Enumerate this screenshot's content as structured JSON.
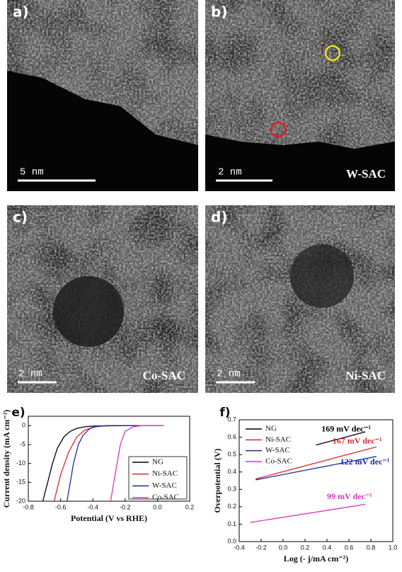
{
  "panels": [
    {
      "label": "a)",
      "scale_bar": "5 nm"
    },
    {
      "label": "b)",
      "scale_bar": "2 nm",
      "sample": "W-SAC"
    },
    {
      "label": "c)",
      "scale_bar": "2 nm",
      "sample": "Co-SAC"
    },
    {
      "label": "d)",
      "scale_bar": "2 nm",
      "sample": "Ni-SAC"
    }
  ],
  "chart_data": [
    {
      "type": "line",
      "label": "e)",
      "x_label": "Potential (V vs RHE)",
      "y_label": "Current density (mA cm⁻²)",
      "xlim": [
        -0.8,
        0.2
      ],
      "xticks": [
        -0.8,
        -0.6,
        -0.4,
        -0.2,
        {
          "value": 0,
          "label": "0.0"
        },
        0.2
      ],
      "ylim": [
        -20,
        2.5
      ],
      "yticks": [
        -20,
        -15,
        -10,
        -5,
        0
      ],
      "legend": "lower-right",
      "series": [
        {
          "name": "NG",
          "color": "#000000",
          "x": [
            -0.71,
            -0.68,
            -0.65,
            -0.62,
            -0.58,
            -0.54,
            -0.5,
            -0.45,
            -0.4,
            -0.3,
            -0.2,
            0.0
          ],
          "values": [
            -20,
            -15,
            -10,
            -6,
            -3,
            -1.5,
            -0.7,
            -0.3,
            -0.1,
            0,
            0,
            0
          ]
        },
        {
          "name": "Ni-SAC",
          "color": "#e02828",
          "x": [
            -0.64,
            -0.6,
            -0.55,
            -0.5,
            -0.45,
            -0.4,
            -0.35,
            -0.2,
            0.0
          ],
          "values": [
            -20,
            -13,
            -7,
            -3,
            -1.2,
            -0.4,
            -0.1,
            0,
            0
          ]
        },
        {
          "name": "W-SAC",
          "color": "#1c2a9c",
          "x": [
            -0.56,
            -0.54,
            -0.52,
            -0.49,
            -0.46,
            -0.42,
            -0.38,
            -0.3,
            0.03
          ],
          "values": [
            -20,
            -15,
            -10,
            -5,
            -2.5,
            -0.8,
            -0.2,
            0,
            0
          ]
        },
        {
          "name": "Co-SAC",
          "color": "#d038c0",
          "x": [
            -0.29,
            -0.27,
            -0.25,
            -0.23,
            -0.2,
            -0.15,
            -0.1,
            0.04
          ],
          "values": [
            -20,
            -15,
            -10,
            -5,
            -1.5,
            -0.3,
            0,
            0
          ]
        }
      ]
    },
    {
      "type": "line",
      "label": "f)",
      "x_label": "Log (- j/mA cm⁻²)",
      "y_label": "Overpotential (V)",
      "xlim": [
        -0.4,
        1.0
      ],
      "xticks": [
        -0.4,
        -0.2,
        {
          "value": 0,
          "label": "0.0"
        },
        0.2,
        0.4,
        0.6,
        0.8,
        {
          "value": 1,
          "label": "1.0"
        }
      ],
      "ylim": [
        0,
        0.7
      ],
      "yticks": [
        {
          "value": 0,
          "label": "0.0"
        },
        0.1,
        0.2,
        0.3,
        0.4,
        0.5,
        0.6,
        0.7
      ],
      "legend": "upper-left",
      "series": [
        {
          "name": "NG",
          "color": "#000000",
          "x": [
            0.3,
            0.75
          ],
          "values": [
            0.555,
            0.631
          ]
        },
        {
          "name": "Ni-SAC",
          "color": "#e02828",
          "x": [
            -0.25,
            0.85
          ],
          "values": [
            0.36,
            0.544
          ]
        },
        {
          "name": "W-SAC",
          "color": "#1c2a9c",
          "x": [
            -0.25,
            0.85
          ],
          "values": [
            0.355,
            0.489
          ]
        },
        {
          "name": "Co-SAC",
          "color": "#d038c0",
          "x": [
            -0.3,
            0.75
          ],
          "values": [
            0.11,
            0.214
          ]
        }
      ],
      "annotations": [
        {
          "text": "169 mV dec⁻¹",
          "color": "#000000"
        },
        {
          "text": "167 mV dec⁻¹",
          "color": "#e02828"
        },
        {
          "text": "122 mV dec⁻¹",
          "color": "#1c2a9c"
        },
        {
          "text": "99 mV dec⁻¹",
          "color": "#d038c0"
        }
      ]
    }
  ]
}
